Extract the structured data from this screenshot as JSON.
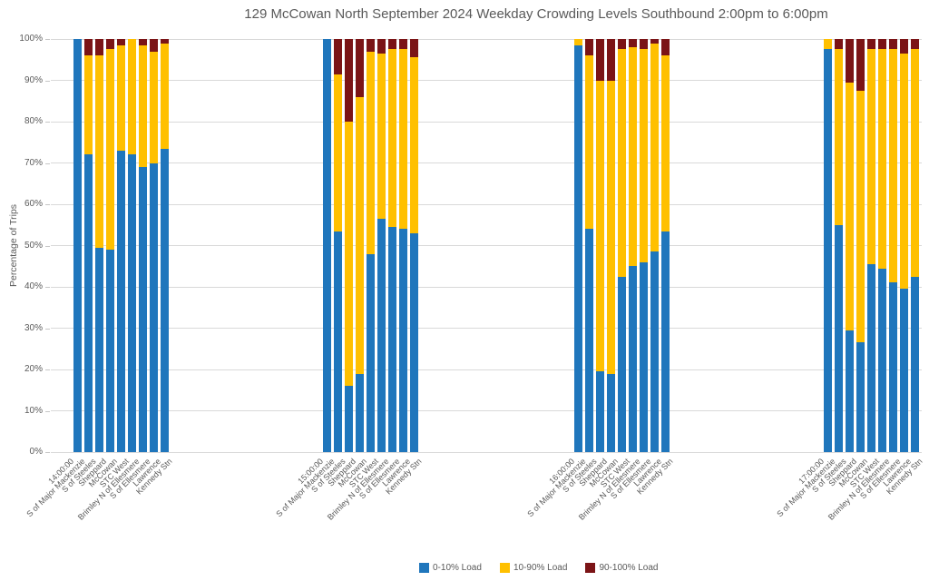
{
  "title": "129 McCowan North September 2024  Weekday Crowding Levels Southbound 2:00pm to 6:00pm",
  "y_axis": {
    "label": "Percentage of Trips",
    "ticks": [
      "0%",
      "10%",
      "20%",
      "30%",
      "40%",
      "50%",
      "60%",
      "70%",
      "80%",
      "90%",
      "100%"
    ]
  },
  "legend": [
    {
      "label": "0-10% Load",
      "color": "#1f76bc"
    },
    {
      "label": "10-90% Load",
      "color": "#ffc000"
    },
    {
      "label": "90-100% Load",
      "color": "#7b1416"
    }
  ],
  "colors": {
    "blue": "#1f76bc",
    "yellow": "#ffc000",
    "dark_red": "#7b1416",
    "gridline": "#d9d9d9",
    "text_gray": "#595959"
  },
  "chart_data": {
    "type": "bar",
    "stacked": true,
    "title": "129 McCowan North September 2024  Weekday Crowding Levels Southbound 2:00pm to 6:00pm",
    "xlabel": "",
    "ylabel": "Percentage of Trips",
    "ylim": [
      0,
      100
    ],
    "grid": true,
    "legend_position": "bottom",
    "series_names": [
      "0-10% Load",
      "10-90% Load",
      "90-100% Load"
    ],
    "categories": [
      "S of Major Mackenzie",
      "S of Steeles",
      "Sheppard",
      "McCowan",
      "STC West",
      "Brimley N of Ellesmere",
      "S of Ellesmere",
      "Lawrence",
      "Kennedy Stn"
    ],
    "groups": [
      {
        "time": "14:00:00",
        "values": [
          [
            100,
            0,
            0
          ],
          [
            72,
            24,
            4
          ],
          [
            49.5,
            46.5,
            4
          ],
          [
            49,
            48.5,
            2.5
          ],
          [
            73,
            25.5,
            1.5
          ],
          [
            72,
            28,
            0
          ],
          [
            69,
            29.5,
            1.5
          ],
          [
            70,
            27,
            3
          ],
          [
            73.5,
            25.5,
            1
          ]
        ]
      },
      {
        "time": "15:00:00",
        "values": [
          [
            100,
            0,
            0
          ],
          [
            53.5,
            38,
            8.5
          ],
          [
            16,
            64,
            20
          ],
          [
            19,
            67,
            14
          ],
          [
            48,
            49,
            3
          ],
          [
            56.5,
            40,
            3.5
          ],
          [
            54.5,
            43,
            2.5
          ],
          [
            54,
            43.5,
            2.5
          ],
          [
            53,
            42.5,
            4.5
          ]
        ]
      },
      {
        "time": "16:00:00",
        "values": [
          [
            98.5,
            1.5,
            0
          ],
          [
            54,
            42,
            4
          ],
          [
            19.5,
            70.5,
            10
          ],
          [
            19,
            71,
            10
          ],
          [
            42.5,
            55,
            2.5
          ],
          [
            45,
            53,
            2
          ],
          [
            46,
            51.5,
            2.5
          ],
          [
            48.5,
            50.5,
            1
          ],
          [
            53.5,
            42.5,
            4
          ]
        ]
      },
      {
        "time": "17:00:00",
        "values": [
          [
            97.5,
            2.5,
            0
          ],
          [
            55,
            42.5,
            2.5
          ],
          [
            29.5,
            60,
            10.5
          ],
          [
            26.5,
            61,
            12.5
          ],
          [
            45.5,
            52,
            2.5
          ],
          [
            44.5,
            53,
            2.5
          ],
          [
            41,
            56.5,
            2.5
          ],
          [
            39.5,
            57,
            3.5
          ],
          [
            42.5,
            55,
            2.5
          ]
        ]
      }
    ]
  }
}
